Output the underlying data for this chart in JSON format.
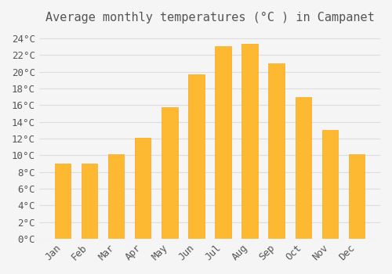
{
  "title": "Average monthly temperatures (°C ) in Campanet",
  "months": [
    "Jan",
    "Feb",
    "Mar",
    "Apr",
    "May",
    "Jun",
    "Jul",
    "Aug",
    "Sep",
    "Oct",
    "Nov",
    "Dec"
  ],
  "values": [
    9.0,
    9.0,
    10.1,
    12.1,
    15.7,
    19.7,
    23.0,
    23.3,
    21.0,
    17.0,
    13.0,
    10.1
  ],
  "bar_color": "#FDB931",
  "bar_edge_color": "#F5A623",
  "background_color": "#F5F5F5",
  "grid_color": "#DDDDDD",
  "text_color": "#555555",
  "ylim": [
    0,
    25
  ],
  "ytick_step": 2,
  "title_fontsize": 11,
  "tick_fontsize": 9
}
